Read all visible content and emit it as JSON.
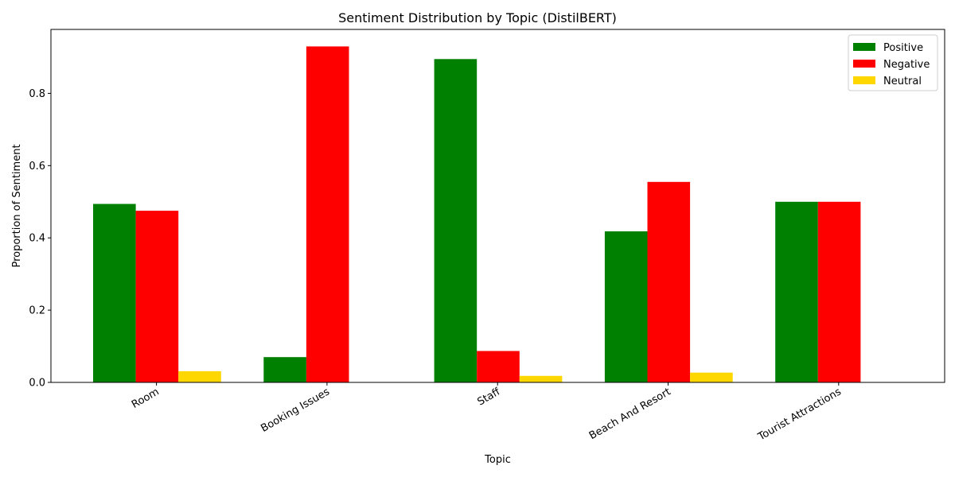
{
  "chart_data": {
    "type": "bar",
    "title": "Sentiment Distribution by Topic (DistilBERT)",
    "xlabel": "Topic",
    "ylabel": "Proportion of Sentiment",
    "categories": [
      "Room",
      "Booking Issues",
      "Staff",
      "Beach And Resort",
      "Tourist Attractions"
    ],
    "series": [
      {
        "name": "Positive",
        "color": "#008000",
        "values": [
          0.494,
          0.07,
          0.895,
          0.418,
          0.5
        ]
      },
      {
        "name": "Negative",
        "color": "#ff0000",
        "values": [
          0.475,
          0.93,
          0.087,
          0.555,
          0.5
        ]
      },
      {
        "name": "Neutral",
        "color": "#ffd700",
        "values": [
          0.031,
          0.0,
          0.018,
          0.027,
          0.0
        ]
      }
    ],
    "ylim": [
      0,
      0.977
    ],
    "yticks": [
      0.0,
      0.2,
      0.4,
      0.6,
      0.8
    ],
    "ytick_labels": [
      "0.0",
      "0.2",
      "0.4",
      "0.6",
      "0.8"
    ],
    "grid": false,
    "legend_position": "top-right"
  }
}
